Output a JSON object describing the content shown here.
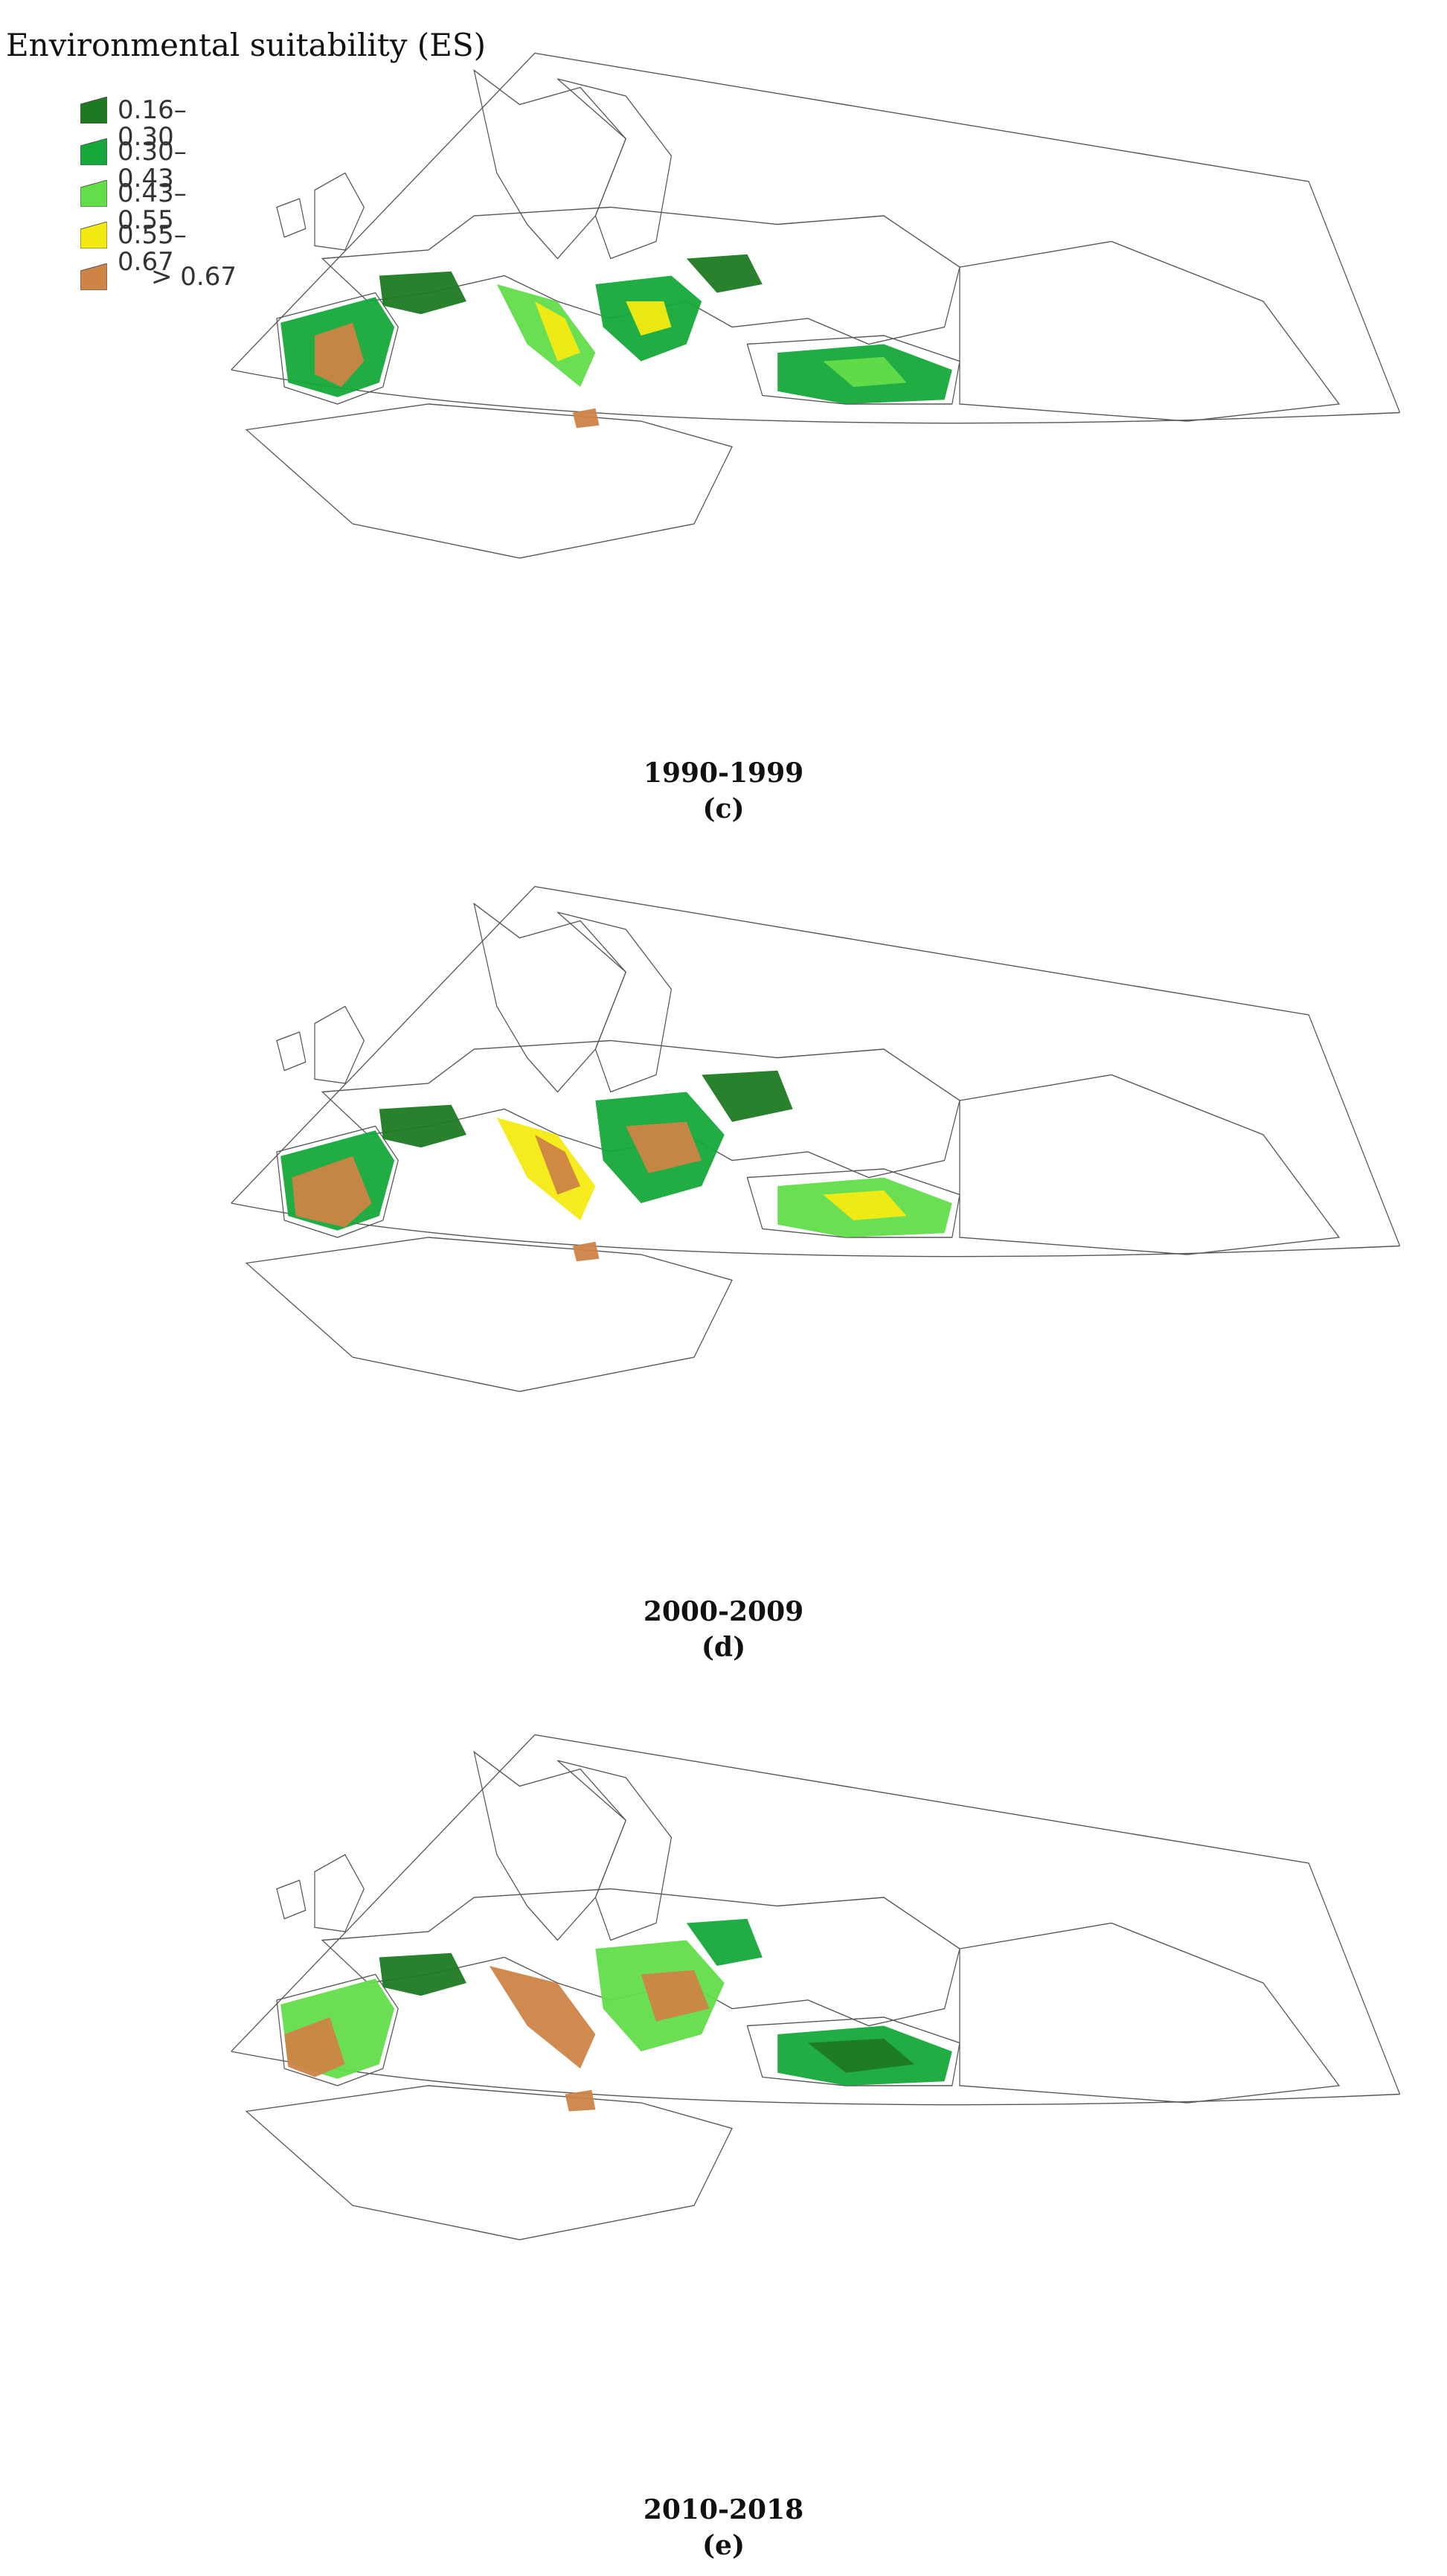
{
  "legend": {
    "title": "Environmental suitability (ES)",
    "classes": [
      {
        "label": "0.16–0.30",
        "color": "#1e7a22"
      },
      {
        "label": "0.30–0.43",
        "color": "#16a83a"
      },
      {
        "label": "0.43–0.55",
        "color": "#63dd4a"
      },
      {
        "label": "0.55–0.67",
        "color": "#f4ea12"
      },
      {
        "label": "> 0.67",
        "color": "#cd8446"
      }
    ]
  },
  "panels": [
    {
      "period": "1990-1999",
      "letter": "(c)"
    },
    {
      "period": "2000-2009",
      "letter": "(d)"
    },
    {
      "period": "2010-2018",
      "letter": "(e)"
    }
  ]
}
